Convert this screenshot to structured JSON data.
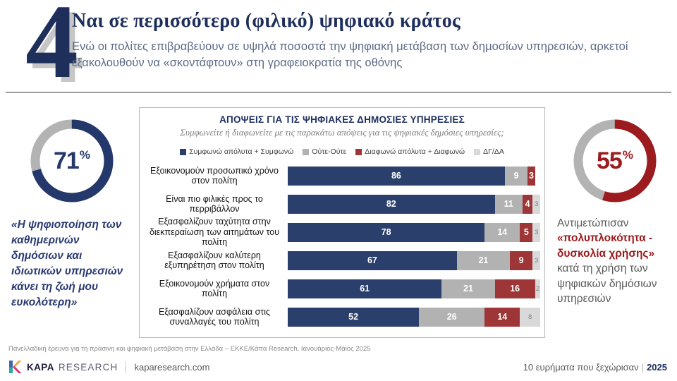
{
  "slide": {
    "number": "4",
    "title": "Ναι σε περισσότερο (φιλικό) ψηφιακό κράτος",
    "subtitle": "Ενώ οι πολίτες επιβραβεύουν σε υψηλά ποσοστά την ψηφιακή μετάβαση των δημοσίων υπηρεσιών, αρκετοί εξακολουθούν να «σκοντάφτουν» στη γραφειοκρατία της οθόνης"
  },
  "left_stat": {
    "value": 71,
    "value_label": "71",
    "percent_sign": "%",
    "ring_color": "#24386B",
    "track_color": "#B3B3B3",
    "caption": "«Η ψηφιοποίηση των καθημερινών δημόσιων και ιδιωτικών υπηρεσιών κάνει τη ζωή μου ευκολότερη»"
  },
  "right_stat": {
    "value": 55,
    "value_label": "55",
    "percent_sign": "%",
    "ring_color": "#9C1B1E",
    "track_color": "#B3B3B3",
    "caption_prefix": "Αντιμετώπισαν ",
    "caption_highlight": "«πολυπλοκότητα - δυσκολία χρήσης»",
    "caption_suffix": " κατά τη χρήση των ψηφιακών δημόσιων υπηρεσιών"
  },
  "chart_data": {
    "type": "bar",
    "orientation": "horizontal",
    "stacked": true,
    "title": "ΑΠΟΨΕΙΣ ΓΙΑ ΤΙΣ ΨΗΦΙΑΚΕΣ ΔΗΜΟΣΙΕΣ ΥΠΗΡΕΣΙΕΣ",
    "subtitle": "Συμφωνείτε ή διαφωνείτε με τις παρακάτω απόψεις για τις ψηφιακές δημόσιες υπηρεσίες;",
    "xlim": [
      0,
      100
    ],
    "grid": false,
    "legend_position": "top",
    "legend": [
      {
        "label": "Συμφωνώ απόλυτα + Συμφωνώ",
        "color": "#2B3F6C"
      },
      {
        "label": "Ούτε-Ούτε",
        "color": "#B2B2B2"
      },
      {
        "label": "Διαφωνώ απόλυτα + Διαφωνώ",
        "color": "#9E3537"
      },
      {
        "label": "ΔΓ/ΔΑ",
        "color": "#D9D9D9"
      }
    ],
    "categories": [
      "Εξοικονομούν προσωπικό χρόνο στον πολίτη",
      "Είναι πιο φιλικές προς το περριβάλλον",
      "Εξασφαλίζουν ταχύτητα στην διεκπεραίωση των αιτημάτων του πολίτη",
      "Εξασφαλίζουν καλύτερη εξυπηρέτηση στον πολίτη",
      "Εξοικονομούν χρήματα στον πολίτη",
      "Εξασφαλίζουν ασφάλεια στις συναλλαγές του πολίτη"
    ],
    "series": [
      {
        "name": "Συμφωνώ απόλυτα + Συμφωνώ",
        "color": "#2B3F6C",
        "values": [
          86,
          82,
          78,
          67,
          61,
          52
        ]
      },
      {
        "name": "Ούτε-Ούτε",
        "color": "#B2B2B2",
        "values": [
          9,
          11,
          14,
          21,
          21,
          26
        ]
      },
      {
        "name": "Διαφωνώ απόλυτα + Διαφωνώ",
        "color": "#9E3537",
        "values": [
          3,
          4,
          5,
          9,
          16,
          14
        ]
      },
      {
        "name": "ΔΓ/ΔΑ",
        "color": "#D9D9D9",
        "values": [
          null,
          3,
          3,
          3,
          2,
          8
        ]
      }
    ]
  },
  "source_note": "Πανελλαδική έρευνα για τη πράσινη και ψηφιακή μετάβαση στην Ελλάδα – ΕΚΚΕ/Κάπα Research, Ιανουάριος-Μάιος 2025",
  "footer": {
    "logo_bold": "KAPA",
    "logo_light": "RESEARCH",
    "website": "kaparesearch.com",
    "right_text": "10 ευρήματα που ξεχώρισαν",
    "right_separator": "|",
    "right_year": "2025"
  }
}
